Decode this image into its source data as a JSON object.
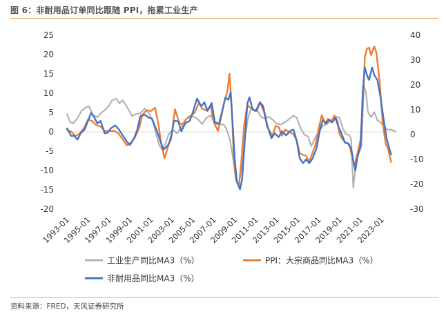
{
  "figure": {
    "title": "图 6：非耐用品订单同比跟随 PPI，拖累工业生产",
    "source": "资料来源：FRED，天风证券研究所"
  },
  "chart_data": {
    "type": "line",
    "title": "图 6：非耐用品订单同比跟随 PPI，拖累工业生产",
    "x_range": [
      1993.0,
      2024.6
    ],
    "x_ticks": [
      "1993-01",
      "1995-01",
      "1997-01",
      "1999-01",
      "2001-01",
      "2003-01",
      "2005-01",
      "2007-01",
      "2009-01",
      "2011-01",
      "2013-01",
      "2015-01",
      "2017-01",
      "2019-01",
      "2021-01",
      "2023-01"
    ],
    "y_left": {
      "lim": [
        -20,
        25
      ],
      "ticks": [
        25,
        20,
        15,
        10,
        5,
        0,
        -5,
        -10,
        -15,
        -20
      ]
    },
    "y_right": {
      "lim": [
        -30,
        40
      ],
      "ticks": [
        40,
        30,
        20,
        10,
        0,
        -10,
        -20,
        -30
      ]
    },
    "series": [
      {
        "name": "工业生产同比MA3（%）",
        "axis": "left",
        "color": "#b3b3b3",
        "points": [
          [
            1993.0,
            4.6
          ],
          [
            1993.3,
            2.5
          ],
          [
            1993.6,
            2.2
          ],
          [
            1994.0,
            3.5
          ],
          [
            1994.4,
            5.5
          ],
          [
            1994.8,
            6.3
          ],
          [
            1995.1,
            6.6
          ],
          [
            1995.5,
            4.3
          ],
          [
            1995.9,
            3.8
          ],
          [
            1996.3,
            5.0
          ],
          [
            1996.7,
            5.8
          ],
          [
            1997.0,
            6.8
          ],
          [
            1997.3,
            8.1
          ],
          [
            1997.7,
            8.6
          ],
          [
            1998.0,
            7.4
          ],
          [
            1998.3,
            8.2
          ],
          [
            1998.6,
            7.0
          ],
          [
            1998.9,
            5.6
          ],
          [
            1999.2,
            4.1
          ],
          [
            1999.6,
            4.6
          ],
          [
            2000.0,
            4.8
          ],
          [
            2000.4,
            6.0
          ],
          [
            2000.8,
            4.9
          ],
          [
            2001.2,
            2.5
          ],
          [
            2001.5,
            -0.5
          ],
          [
            2001.8,
            -3.5
          ],
          [
            2002.1,
            -4.6
          ],
          [
            2002.4,
            -3.0
          ],
          [
            2002.7,
            -0.6
          ],
          [
            2003.1,
            0.5
          ],
          [
            2003.5,
            -0.4
          ],
          [
            2003.9,
            1.2
          ],
          [
            2004.3,
            3.0
          ],
          [
            2004.7,
            4.2
          ],
          [
            2005.1,
            3.9
          ],
          [
            2005.5,
            3.2
          ],
          [
            2005.9,
            2.0
          ],
          [
            2006.3,
            3.6
          ],
          [
            2006.7,
            4.3
          ],
          [
            2007.1,
            2.1
          ],
          [
            2007.5,
            1.8
          ],
          [
            2007.9,
            2.0
          ],
          [
            2008.2,
            0.8
          ],
          [
            2008.5,
            -1.6
          ],
          [
            2008.7,
            -4.5
          ],
          [
            2008.9,
            -8.0
          ],
          [
            2009.1,
            -12.2
          ],
          [
            2009.4,
            -13.7
          ],
          [
            2009.7,
            -8.5
          ],
          [
            2010.0,
            -1.0
          ],
          [
            2010.3,
            4.0
          ],
          [
            2010.6,
            6.3
          ],
          [
            2010.9,
            5.6
          ],
          [
            2011.2,
            5.3
          ],
          [
            2011.5,
            3.9
          ],
          [
            2011.8,
            3.5
          ],
          [
            2012.2,
            3.9
          ],
          [
            2012.6,
            3.2
          ],
          [
            2013.0,
            2.1
          ],
          [
            2013.4,
            1.9
          ],
          [
            2013.8,
            2.5
          ],
          [
            2014.2,
            3.3
          ],
          [
            2014.6,
            4.2
          ],
          [
            2014.9,
            3.7
          ],
          [
            2015.2,
            1.4
          ],
          [
            2015.6,
            -0.6
          ],
          [
            2016.0,
            -1.3
          ],
          [
            2016.3,
            -3.7
          ],
          [
            2016.6,
            -1.8
          ],
          [
            2017.0,
            0.0
          ],
          [
            2017.4,
            1.6
          ],
          [
            2017.8,
            2.0
          ],
          [
            2018.2,
            3.0
          ],
          [
            2018.6,
            4.0
          ],
          [
            2019.0,
            3.6
          ],
          [
            2019.3,
            0.9
          ],
          [
            2019.6,
            -0.6
          ],
          [
            2019.9,
            -0.8
          ],
          [
            2020.1,
            -1.8
          ],
          [
            2020.3,
            -14.5
          ],
          [
            2020.6,
            -7.0
          ],
          [
            2020.9,
            -5.0
          ],
          [
            2021.1,
            -3.5
          ],
          [
            2021.3,
            12.0
          ],
          [
            2021.5,
            10.4
          ],
          [
            2021.7,
            5.2
          ],
          [
            2022.0,
            3.8
          ],
          [
            2022.3,
            5.1
          ],
          [
            2022.6,
            3.0
          ],
          [
            2022.9,
            2.5
          ],
          [
            2023.2,
            1.4
          ],
          [
            2023.6,
            0.5
          ],
          [
            2023.9,
            0.6
          ],
          [
            2024.3,
            0.1
          ]
        ]
      },
      {
        "name": "PPI：大宗商品同比MA3（%）",
        "axis": "right",
        "color": "#ed7d31",
        "points": [
          [
            1993.0,
            2.0
          ],
          [
            1993.4,
            1.2
          ],
          [
            1993.8,
            -0.5
          ],
          [
            1994.2,
            0.3
          ],
          [
            1994.6,
            2.5
          ],
          [
            1995.0,
            6.0
          ],
          [
            1995.4,
            5.5
          ],
          [
            1995.8,
            3.8
          ],
          [
            1996.2,
            3.3
          ],
          [
            1996.6,
            1.5
          ],
          [
            1997.0,
            1.4
          ],
          [
            1997.5,
            1.5
          ],
          [
            1997.9,
            0.5
          ],
          [
            1998.3,
            -1.8
          ],
          [
            1998.7,
            -4.3
          ],
          [
            1999.1,
            -3.2
          ],
          [
            1999.5,
            -1.0
          ],
          [
            1999.9,
            2.9
          ],
          [
            2000.2,
            8.0
          ],
          [
            2000.6,
            9.8
          ],
          [
            2001.0,
            9.5
          ],
          [
            2001.4,
            10.8
          ],
          [
            2001.7,
            4.5
          ],
          [
            2002.0,
            -4.0
          ],
          [
            2002.3,
            -9.5
          ],
          [
            2002.7,
            -4.0
          ],
          [
            2003.0,
            0.5
          ],
          [
            2003.3,
            10.2
          ],
          [
            2003.7,
            4.8
          ],
          [
            2004.0,
            4.0
          ],
          [
            2004.4,
            6.4
          ],
          [
            2004.8,
            7.3
          ],
          [
            2005.2,
            9.0
          ],
          [
            2005.6,
            13.0
          ],
          [
            2005.9,
            10.4
          ],
          [
            2006.3,
            9.8
          ],
          [
            2006.7,
            11.5
          ],
          [
            2007.0,
            4.9
          ],
          [
            2007.4,
            1.5
          ],
          [
            2007.7,
            7.0
          ],
          [
            2008.0,
            13.0
          ],
          [
            2008.3,
            17.5
          ],
          [
            2008.5,
            24.5
          ],
          [
            2008.7,
            12.0
          ],
          [
            2008.9,
            -8.0
          ],
          [
            2009.1,
            -18.0
          ],
          [
            2009.4,
            -20.5
          ],
          [
            2009.6,
            -12.0
          ],
          [
            2009.9,
            4.0
          ],
          [
            2010.2,
            12.0
          ],
          [
            2010.4,
            11.0
          ],
          [
            2010.8,
            10.0
          ],
          [
            2011.1,
            9.5
          ],
          [
            2011.4,
            13.0
          ],
          [
            2011.8,
            9.0
          ],
          [
            2012.1,
            3.0
          ],
          [
            2012.6,
            -0.5
          ],
          [
            2012.9,
            3.5
          ],
          [
            2013.2,
            3.0
          ],
          [
            2013.5,
            -0.5
          ],
          [
            2013.8,
            2.0
          ],
          [
            2014.2,
            1.0
          ],
          [
            2014.6,
            0.2
          ],
          [
            2014.9,
            -2.3
          ],
          [
            2015.2,
            -7.5
          ],
          [
            2015.5,
            -8.2
          ],
          [
            2015.8,
            -8.5
          ],
          [
            2016.1,
            -11.0
          ],
          [
            2016.4,
            -7.5
          ],
          [
            2016.7,
            -4.0
          ],
          [
            2017.0,
            2.5
          ],
          [
            2017.3,
            7.9
          ],
          [
            2017.6,
            4.5
          ],
          [
            2017.9,
            6.4
          ],
          [
            2018.2,
            5.0
          ],
          [
            2018.5,
            7.7
          ],
          [
            2018.8,
            5.5
          ],
          [
            2019.0,
            0.0
          ],
          [
            2019.3,
            -2.0
          ],
          [
            2019.6,
            -3.4
          ],
          [
            2019.9,
            -3.8
          ],
          [
            2020.2,
            -9.0
          ],
          [
            2020.4,
            -12.5
          ],
          [
            2020.7,
            -7.5
          ],
          [
            2021.0,
            -2.0
          ],
          [
            2021.2,
            12.0
          ],
          [
            2021.4,
            31.0
          ],
          [
            2021.6,
            34.5
          ],
          [
            2021.8,
            35.0
          ],
          [
            2022.0,
            32.0
          ],
          [
            2022.3,
            35.5
          ],
          [
            2022.5,
            33.0
          ],
          [
            2022.8,
            22.0
          ],
          [
            2023.1,
            5.0
          ],
          [
            2023.4,
            -4.0
          ],
          [
            2023.6,
            -5.5
          ],
          [
            2023.9,
            -11.0
          ]
        ]
      },
      {
        "name": "非耐用品同比MA3（%）",
        "axis": "right",
        "color": "#4472c4",
        "points": [
          [
            1993.0,
            2.5
          ],
          [
            1993.4,
            -0.5
          ],
          [
            1993.7,
            -0.5
          ],
          [
            1994.0,
            -2.0
          ],
          [
            1994.3,
            0.5
          ],
          [
            1994.7,
            2.2
          ],
          [
            1995.0,
            5.5
          ],
          [
            1995.3,
            8.7
          ],
          [
            1995.6,
            7.0
          ],
          [
            1995.9,
            4.5
          ],
          [
            1996.2,
            5.5
          ],
          [
            1996.6,
            0.5
          ],
          [
            1996.9,
            0.8
          ],
          [
            1997.2,
            2.6
          ],
          [
            1997.6,
            3.7
          ],
          [
            1997.9,
            2.4
          ],
          [
            1998.3,
            -0.2
          ],
          [
            1998.7,
            -2.8
          ],
          [
            1999.0,
            -4.2
          ],
          [
            1999.4,
            -1.5
          ],
          [
            1999.7,
            2.0
          ],
          [
            2000.0,
            7.5
          ],
          [
            2000.4,
            8.0
          ],
          [
            2000.8,
            6.8
          ],
          [
            2001.1,
            6.5
          ],
          [
            2001.5,
            2.3
          ],
          [
            2001.9,
            -2.5
          ],
          [
            2002.2,
            -6.0
          ],
          [
            2002.6,
            -4.5
          ],
          [
            2002.9,
            -2.0
          ],
          [
            2003.2,
            5.5
          ],
          [
            2003.6,
            5.4
          ],
          [
            2003.9,
            1.3
          ],
          [
            2004.3,
            4.7
          ],
          [
            2004.7,
            5.5
          ],
          [
            2005.0,
            9.0
          ],
          [
            2005.4,
            14.5
          ],
          [
            2005.8,
            11.4
          ],
          [
            2006.1,
            13.0
          ],
          [
            2006.4,
            9.5
          ],
          [
            2006.8,
            12.7
          ],
          [
            2007.1,
            5.0
          ],
          [
            2007.5,
            4.4
          ],
          [
            2007.8,
            9.5
          ],
          [
            2008.1,
            14.9
          ],
          [
            2008.4,
            14.0
          ],
          [
            2008.6,
            17.0
          ],
          [
            2008.8,
            4.0
          ],
          [
            2009.0,
            -10.0
          ],
          [
            2009.2,
            -19.0
          ],
          [
            2009.5,
            -22.0
          ],
          [
            2009.7,
            -18.0
          ],
          [
            2010.0,
            0.0
          ],
          [
            2010.2,
            12.5
          ],
          [
            2010.4,
            15.0
          ],
          [
            2010.7,
            10.0
          ],
          [
            2011.0,
            9.5
          ],
          [
            2011.4,
            13.0
          ],
          [
            2011.7,
            11.5
          ],
          [
            2012.1,
            3.7
          ],
          [
            2012.5,
            -1.5
          ],
          [
            2012.8,
            0.5
          ],
          [
            2013.2,
            -1.0
          ],
          [
            2013.5,
            1.3
          ],
          [
            2013.9,
            -0.3
          ],
          [
            2014.3,
            1.5
          ],
          [
            2014.6,
            2.0
          ],
          [
            2014.9,
            -2.5
          ],
          [
            2015.2,
            -9.5
          ],
          [
            2015.5,
            -11.5
          ],
          [
            2015.8,
            -10.0
          ],
          [
            2016.1,
            -11.5
          ],
          [
            2016.4,
            -9.8
          ],
          [
            2016.8,
            -5.5
          ],
          [
            2017.1,
            1.5
          ],
          [
            2017.4,
            5.9
          ],
          [
            2017.7,
            4.5
          ],
          [
            2018.0,
            6.0
          ],
          [
            2018.3,
            5.0
          ],
          [
            2018.6,
            6.7
          ],
          [
            2018.9,
            3.0
          ],
          [
            2019.2,
            0.2
          ],
          [
            2019.5,
            -3.2
          ],
          [
            2019.8,
            -3.5
          ],
          [
            2020.1,
            -5.5
          ],
          [
            2020.3,
            -10.5
          ],
          [
            2020.5,
            -14.5
          ],
          [
            2020.7,
            -9.0
          ],
          [
            2021.0,
            -4.5
          ],
          [
            2021.2,
            17.0
          ],
          [
            2021.4,
            27.0
          ],
          [
            2021.6,
            24.0
          ],
          [
            2021.8,
            22.0
          ],
          [
            2022.1,
            27.0
          ],
          [
            2022.3,
            24.0
          ],
          [
            2022.6,
            22.0
          ],
          [
            2022.9,
            15.0
          ],
          [
            2023.2,
            6.0
          ],
          [
            2023.5,
            -2.0
          ],
          [
            2023.9,
            -8.0
          ]
        ]
      }
    ]
  }
}
